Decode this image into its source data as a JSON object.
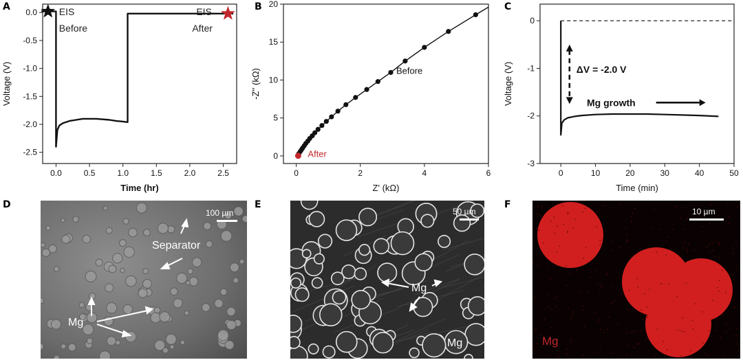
{
  "panels": {
    "A": "A",
    "B": "B",
    "C": "C",
    "D": "D",
    "E": "E",
    "F": "F"
  },
  "chart_data": [
    {
      "panel": "A",
      "type": "line",
      "xlabel": "Time (hr)",
      "ylabel": "Voltage (V)",
      "xlim": [
        -0.2,
        2.7
      ],
      "ylim": [
        -2.7,
        0.15
      ],
      "xticks": [
        0.0,
        0.5,
        1.0,
        1.5,
        2.0,
        2.5
      ],
      "xtick_labels": [
        "0.0",
        "0.5",
        "1.0",
        "1.5",
        "2.0",
        "2.5"
      ],
      "yticks": [
        0.0,
        -0.5,
        -1.0,
        -1.5,
        -2.0,
        -2.5
      ],
      "ytick_labels": [
        "0.0",
        "-0.5",
        "-1.0",
        "-1.5",
        "-2.0",
        "-2.5"
      ],
      "series": [
        {
          "x": [
            -0.22,
            -0.02,
            0.0,
            0.0,
            0.02,
            0.05,
            0.1,
            0.2,
            0.3,
            0.4,
            0.5,
            0.6,
            0.7,
            0.8,
            0.9,
            1.0,
            1.07,
            1.07,
            1.1,
            1.5,
            2.0,
            2.5,
            2.65
          ],
          "y": [
            0.02,
            0.02,
            0.02,
            -2.4,
            -2.1,
            -2.02,
            -1.98,
            -1.94,
            -1.92,
            -1.9,
            -1.9,
            -1.9,
            -1.91,
            -1.92,
            -1.94,
            -1.95,
            -1.96,
            -0.02,
            -0.02,
            -0.02,
            -0.02,
            -0.02,
            -0.02
          ]
        }
      ],
      "annotations": [
        {
          "text": "EIS",
          "text2": "Before",
          "marker": "star",
          "color": "#111111",
          "x": -0.12,
          "y": 0.02
        },
        {
          "text": "EIS",
          "text2": "After",
          "marker": "star",
          "color": "#c0282d",
          "x": 2.57,
          "y": -0.02
        }
      ]
    },
    {
      "panel": "B",
      "type": "scatter",
      "xlabel": "Z' (kΩ)",
      "ylabel": "-Z'' (kΩ)",
      "xlim": [
        -0.4,
        6
      ],
      "ylim": [
        -1,
        20
      ],
      "xticks": [
        0,
        2,
        4,
        6
      ],
      "xtick_labels": [
        "0",
        "2",
        "4",
        "6"
      ],
      "yticks": [
        0,
        5,
        10,
        15,
        20
      ],
      "ytick_labels": [
        "0",
        "5",
        "10",
        "15",
        "20"
      ],
      "series": [
        {
          "name": "Before",
          "color": "#111111",
          "x": [
            0.08,
            0.12,
            0.16,
            0.2,
            0.25,
            0.3,
            0.36,
            0.42,
            0.5,
            0.58,
            0.68,
            0.8,
            0.94,
            1.1,
            1.3,
            1.55,
            1.85,
            2.2,
            2.55,
            2.95,
            3.4,
            4.0,
            4.75,
            5.6
          ],
          "y": [
            0.3,
            0.55,
            0.8,
            1.05,
            1.35,
            1.65,
            1.95,
            2.3,
            2.65,
            3.05,
            3.5,
            4.0,
            4.55,
            5.15,
            5.9,
            6.75,
            7.7,
            8.75,
            9.8,
            11.0,
            12.5,
            14.3,
            16.4,
            18.6
          ]
        },
        {
          "name": "After",
          "color": "#c0282d",
          "x": [
            0.06
          ],
          "y": [
            0.02
          ]
        }
      ]
    },
    {
      "panel": "C",
      "type": "line",
      "xlabel": "Time (min)",
      "ylabel": "Voltage (V)",
      "xlim": [
        -6,
        50
      ],
      "ylim": [
        -3,
        0.35
      ],
      "xticks": [
        0,
        10,
        20,
        30,
        40,
        50
      ],
      "xtick_labels": [
        "0",
        "10",
        "20",
        "30",
        "40",
        "50"
      ],
      "yticks": [
        0,
        -1,
        -2,
        -3
      ],
      "ytick_labels": [
        "0",
        "-1",
        "-2",
        "-3"
      ],
      "series": [
        {
          "x": [
            0,
            0,
            0.3,
            1,
            2,
            4,
            6,
            10,
            15,
            20,
            25,
            30,
            35,
            40,
            45.5
          ],
          "y": [
            0,
            -2.4,
            -2.15,
            -2.08,
            -2.04,
            -2.01,
            -1.99,
            -1.97,
            -1.96,
            -1.96,
            -1.96,
            -1.97,
            -1.98,
            -1.99,
            -2.01
          ]
        }
      ],
      "reference_line": {
        "y": 0,
        "style": "dashed"
      },
      "annotations": [
        {
          "text": "ΔV = -2.0 V"
        },
        {
          "text": "Mg growth"
        }
      ]
    }
  ],
  "micrographs": {
    "D": {
      "scale": "100 µm",
      "labels": [
        "Separator",
        "Mg"
      ]
    },
    "E": {
      "scale": "50 µm",
      "labels": [
        "Mg",
        "Mg"
      ]
    },
    "F": {
      "scale": "10 µm",
      "labels": [
        "Mg"
      ]
    }
  },
  "colors": {
    "accent_red": "#c0282d",
    "map_red": "#d11f1f"
  }
}
